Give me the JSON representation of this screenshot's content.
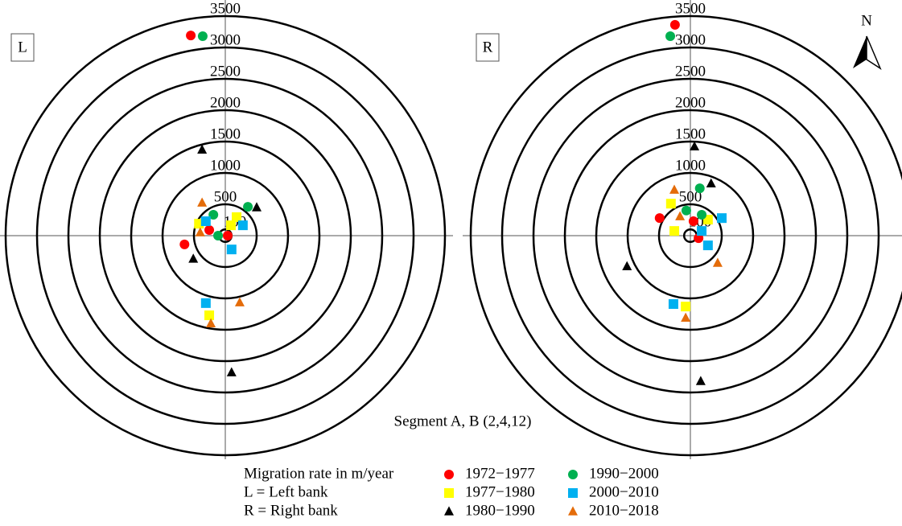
{
  "chart_data": {
    "type": "polar_scatter",
    "rlim": [
      0,
      3500
    ],
    "rticks": [
      100,
      500,
      1000,
      1500,
      2000,
      2500,
      3000,
      3500
    ],
    "legend": [
      {
        "name": "1972−1977",
        "color": "#ff0000",
        "marker": "circle"
      },
      {
        "name": "1977−1980",
        "color": "#ffff00",
        "marker": "square"
      },
      {
        "name": "1980−1990",
        "color": "#000000",
        "marker": "triangle"
      },
      {
        "name": "1990−2000",
        "color": "#00b050",
        "marker": "circle"
      },
      {
        "name": "2000−2010",
        "color": "#00b0f0",
        "marker": "square"
      },
      {
        "name": "2010−2018",
        "color": "#e46c0a",
        "marker": "triangle"
      }
    ],
    "panels": [
      {
        "label": "L",
        "series": [
          {
            "x": [
              -550,
              -256,
              38,
              -650
            ],
            "y": [
              3190,
              90,
              0,
              -140
            ]
          },
          {
            "x": [
              180,
              90,
              -420,
              -256
            ],
            "y": [
              295,
              165,
              190,
              -1270
            ]
          },
          {
            "x": [
              -370,
              -510,
              500,
              100
            ],
            "y": [
              1370,
              -370,
              450,
              -2180
            ]
          },
          {
            "x": [
              -360,
              -190,
              -115,
              360
            ],
            "y": [
              3180,
              333,
              0,
              460
            ]
          },
          {
            "x": [
              -310,
              280,
              100,
              -310
            ],
            "y": [
              230,
              165,
              -220,
              -1075
            ]
          },
          {
            "x": [
              -370,
              -400,
              230,
              -230
            ],
            "y": [
              525,
              50,
              -1065,
              -1400
            ]
          }
        ]
      },
      {
        "label": "R",
        "series": [
          {
            "x": [
              -245,
              -490,
              50,
              130
            ],
            "y": [
              3360,
              280,
              230,
              -40
            ]
          },
          {
            "x": [
              -310,
              -256,
              280,
              -75
            ],
            "y": [
              510,
              75,
              255,
              -1130
            ]
          },
          {
            "x": [
              65,
              330,
              -1010,
              165
            ],
            "y": [
              1420,
              830,
              -490,
              -2320
            ]
          },
          {
            "x": [
              -320,
              150,
              -65,
              180
            ],
            "y": [
              3180,
              755,
              400,
              333
            ]
          },
          {
            "x": [
              500,
              180,
              280,
              -270
            ],
            "y": [
              280,
              75,
              -155,
              -1090
            ]
          },
          {
            "x": [
              -256,
              -165,
              435,
              -75
            ],
            "y": [
              730,
              307,
              -435,
              -1310
            ]
          }
        ]
      }
    ],
    "segment_label": "Segment A, B (2,4,12)",
    "notes": [
      "Migration rate in m/year",
      "L = Left bank",
      "R = Right bank"
    ],
    "north": "N"
  }
}
